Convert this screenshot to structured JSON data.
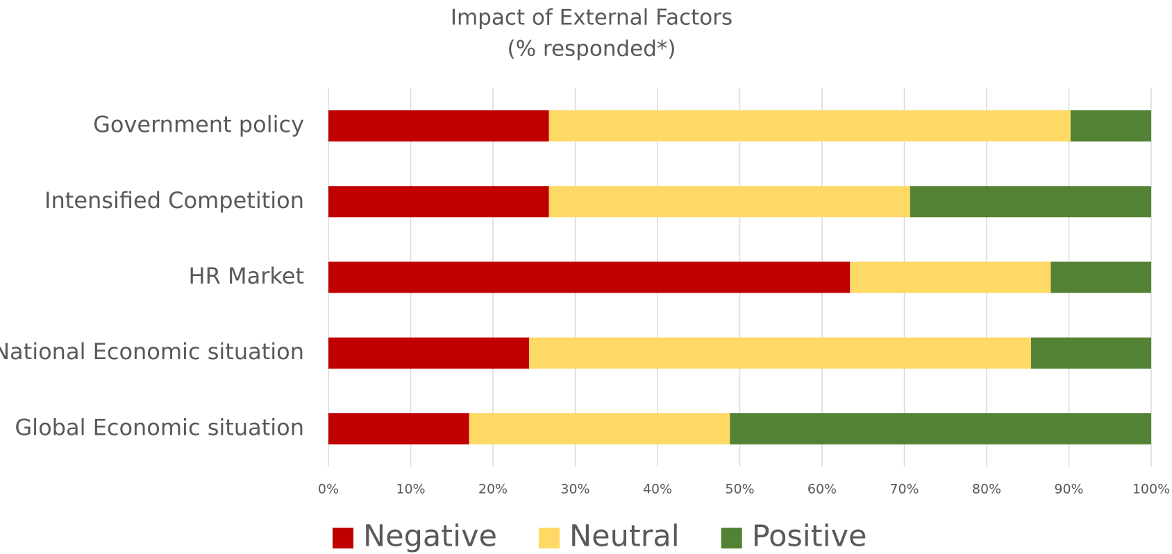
{
  "chart_data": {
    "type": "bar",
    "orientation": "horizontal",
    "stacked": true,
    "title": "Impact of External Factors",
    "subtitle": "(% responded*)",
    "categories": [
      "Government policy",
      "Intensified Competition",
      "HR Market",
      "National Economic situation",
      "Global Economic situation"
    ],
    "series": [
      {
        "name": "Negative",
        "color": "#c00000",
        "values": [
          26.8,
          26.8,
          63.4,
          24.4,
          17.1
        ]
      },
      {
        "name": "Neutral",
        "color": "#ffd966",
        "values": [
          63.4,
          43.9,
          24.4,
          61.0,
          31.7
        ]
      },
      {
        "name": "Positive",
        "color": "#548235",
        "values": [
          9.8,
          29.3,
          12.2,
          14.6,
          51.2
        ]
      }
    ],
    "xlim": [
      0,
      100
    ],
    "xticks": [
      {
        "value": 0,
        "label": "0%"
      },
      {
        "value": 10,
        "label": "10%"
      },
      {
        "value": 20,
        "label": "20%"
      },
      {
        "value": 30,
        "label": "30%"
      },
      {
        "value": 40,
        "label": "40%"
      },
      {
        "value": 50,
        "label": "50%"
      },
      {
        "value": 60,
        "label": "60%"
      },
      {
        "value": 70,
        "label": "70%"
      },
      {
        "value": 80,
        "label": "80%"
      },
      {
        "value": 90,
        "label": "90%"
      },
      {
        "value": 100,
        "label": "100%"
      }
    ],
    "grid": true,
    "legend": "bottom"
  }
}
